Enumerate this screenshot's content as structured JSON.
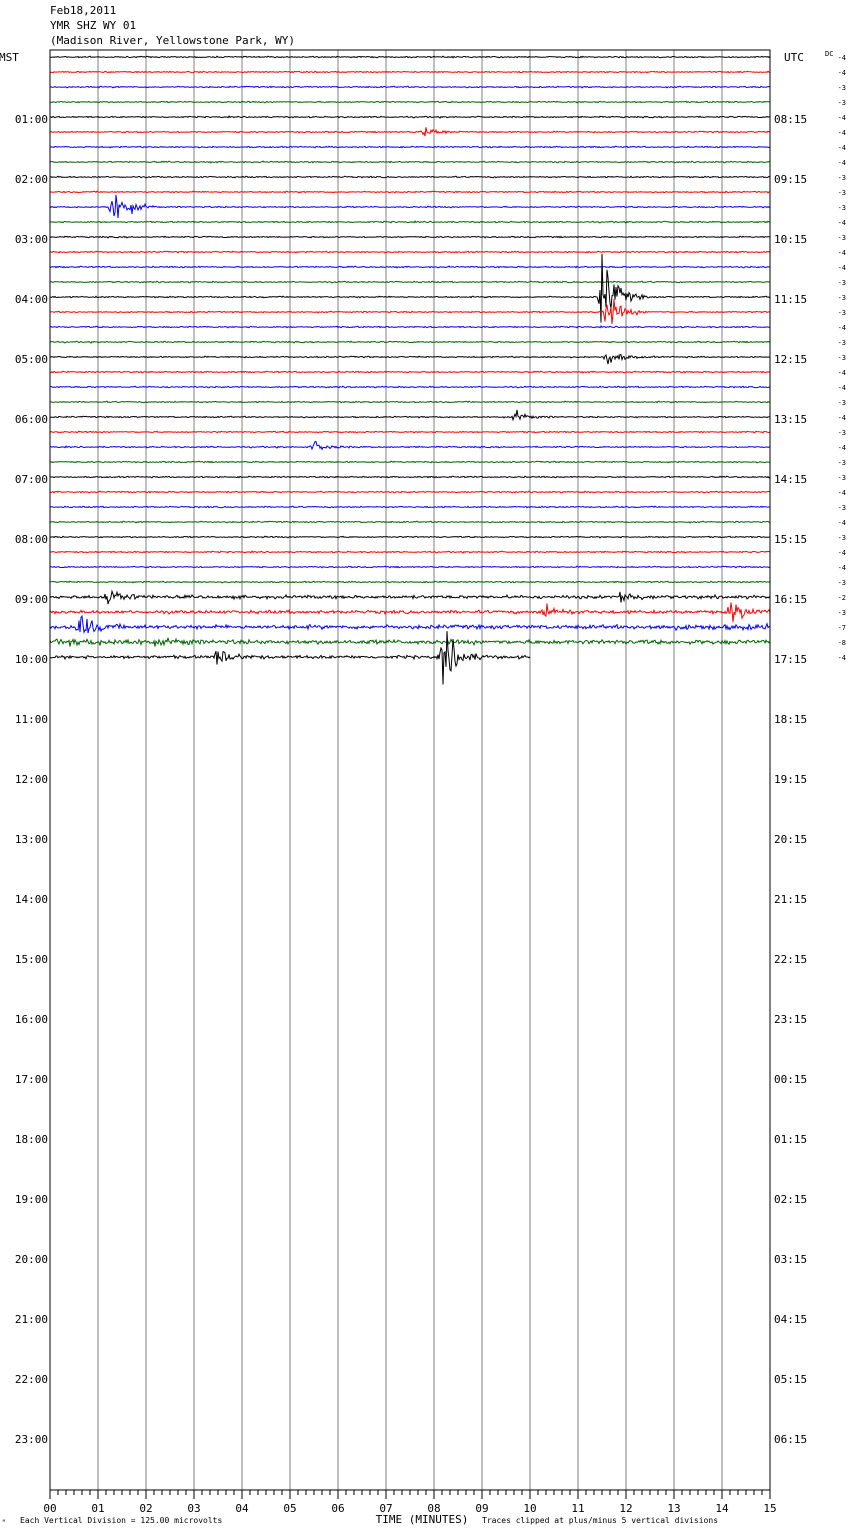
{
  "header": {
    "date": "Feb18,2011",
    "station": "YMR SHZ WY 01",
    "location": "(Madison River, Yellowstone Park, WY)"
  },
  "axes": {
    "left_label": "MST",
    "right_label": "UTC",
    "dc_label": "DC",
    "x_title": "TIME (MINUTES)"
  },
  "footer": {
    "scale_note": "Each Vertical Division =  125.00 microvolts",
    "clip_note": "Traces clipped at plus/minus 5 vertical divisions",
    "corner_mark": "ᴹ"
  },
  "colors": {
    "trace_cycle": [
      "#000000",
      "#ff0000",
      "#0000ff",
      "#006400"
    ],
    "grid": "#808080"
  },
  "chart_data": {
    "type": "line",
    "title": "YMR SHZ WY 01",
    "xlabel": "TIME (MINUTES)",
    "xlim": [
      0,
      15
    ],
    "x_ticks": [
      "00",
      "01",
      "02",
      "03",
      "04",
      "05",
      "06",
      "07",
      "08",
      "09",
      "10",
      "11",
      "12",
      "13",
      "14",
      "15"
    ],
    "left_hours": [
      "01:00",
      "02:00",
      "03:00",
      "04:00",
      "05:00",
      "06:00",
      "07:00",
      "08:00",
      "09:00",
      "10:00",
      "11:00",
      "12:00",
      "13:00",
      "14:00",
      "15:00",
      "16:00",
      "17:00",
      "18:00",
      "19:00",
      "20:00",
      "21:00",
      "22:00",
      "23:00"
    ],
    "right_hours": [
      "08:15",
      "09:15",
      "10:15",
      "11:15",
      "12:15",
      "13:15",
      "14:15",
      "15:15",
      "16:15",
      "17:15",
      "18:15",
      "19:15",
      "20:15",
      "21:15",
      "22:15",
      "23:15",
      "00:15",
      "01:15",
      "02:15",
      "03:15",
      "04:15",
      "05:15",
      "06:15"
    ],
    "dc_offsets": [
      -4,
      -4,
      -3,
      -3,
      -4,
      -4,
      -4,
      -4,
      -3,
      -3,
      -3,
      -4,
      -3,
      -4,
      -4,
      -3,
      -3,
      -3,
      -4,
      -3,
      -3,
      -4,
      -4,
      -3,
      -4,
      -3,
      -4,
      -3,
      -3,
      -4,
      -3,
      -4,
      -3,
      -4,
      -4,
      -3,
      -2,
      -3,
      -7,
      -8,
      -4
    ],
    "traces_recorded": 41,
    "last_trace_end_minute": 10.0,
    "events": [
      {
        "trace": 5,
        "minute": 7.8,
        "amplitude": 0.7
      },
      {
        "trace": 10,
        "minute": 1.3,
        "amplitude": 2.5
      },
      {
        "trace": 16,
        "minute": 11.5,
        "amplitude": 4.5
      },
      {
        "trace": 17,
        "minute": 11.6,
        "amplitude": 2.0
      },
      {
        "trace": 20,
        "minute": 11.6,
        "amplitude": 1.0
      },
      {
        "trace": 24,
        "minute": 9.7,
        "amplitude": 0.6
      },
      {
        "trace": 26,
        "minute": 5.5,
        "amplitude": 0.6
      },
      {
        "trace": 36,
        "minute": 1.2,
        "amplitude": 1.2
      },
      {
        "trace": 36,
        "minute": 11.9,
        "amplitude": 0.8
      },
      {
        "trace": 37,
        "minute": 10.3,
        "amplitude": 0.9
      },
      {
        "trace": 37,
        "minute": 14.2,
        "amplitude": 1.3
      },
      {
        "trace": 38,
        "minute": 0.6,
        "amplitude": 1.6
      },
      {
        "trace": 40,
        "minute": 8.2,
        "amplitude": 3.5
      },
      {
        "trace": 40,
        "minute": 3.5,
        "amplitude": 1.0
      }
    ]
  }
}
